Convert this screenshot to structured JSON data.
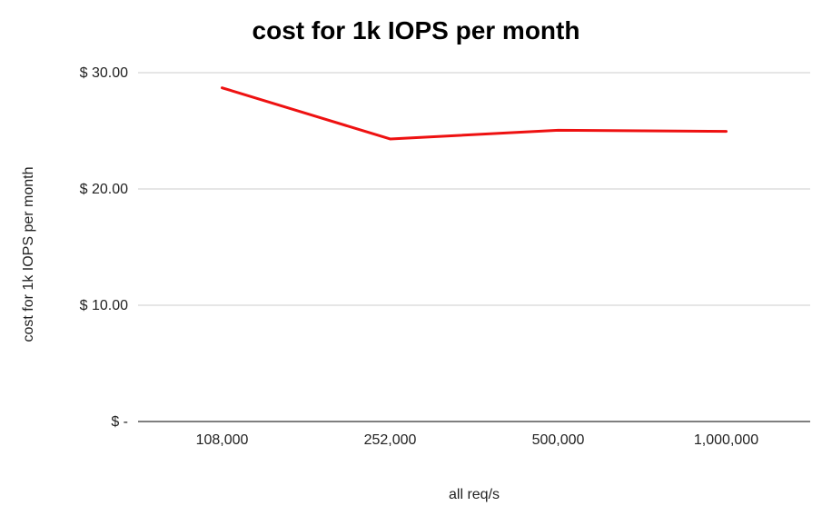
{
  "chart_data": {
    "type": "line",
    "title": "cost for 1k IOPS per month",
    "xlabel": "all req/s",
    "ylabel": "cost for 1k IOPS per month",
    "categories": [
      "108,000",
      "252,000",
      "500,000",
      "1,000,000"
    ],
    "series": [
      {
        "values": [
          28.7,
          24.3,
          25.05,
          24.95
        ],
        "color": "#ee1111"
      }
    ],
    "ylim": [
      0,
      30
    ],
    "yticks": [
      0,
      10,
      20,
      30
    ],
    "ytick_labels": [
      "$ -",
      "$ 10.00",
      "$ 20.00",
      "$ 30.00"
    ],
    "grid": true,
    "legend": "none"
  }
}
